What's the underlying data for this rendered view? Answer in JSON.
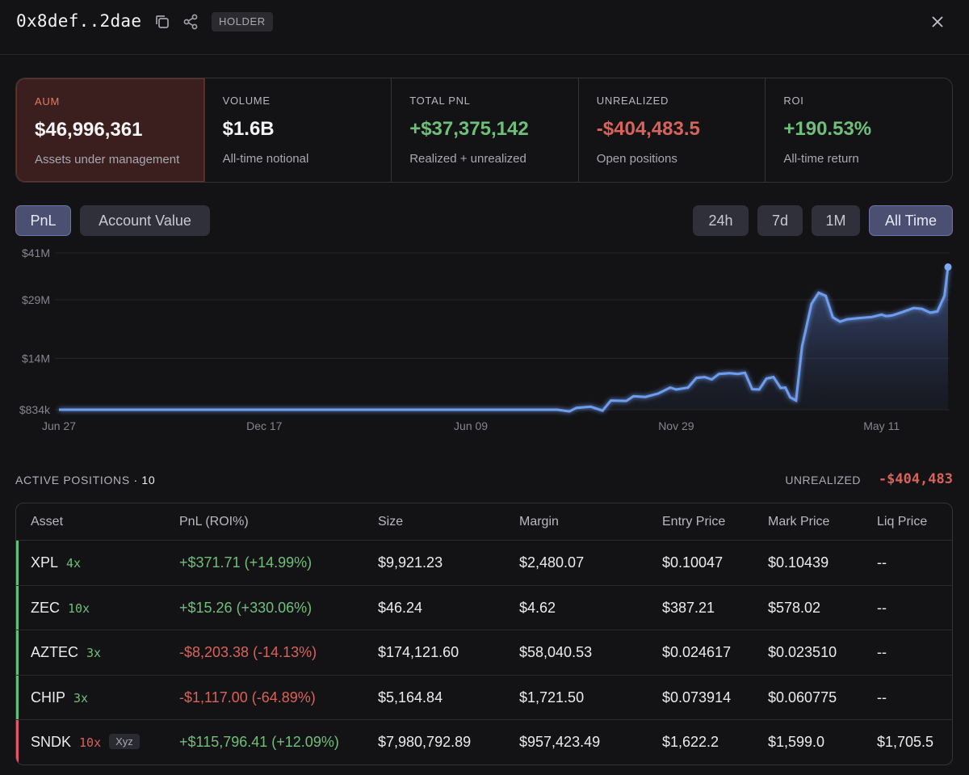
{
  "header": {
    "address": "0x8def..2dae",
    "badge": "HOLDER"
  },
  "stats": [
    {
      "label": "AUM",
      "value": "$46,996,361",
      "sub": "Assets under management"
    },
    {
      "label": "VOLUME",
      "value": "$1.6B",
      "sub": "All-time notional"
    },
    {
      "label": "TOTAL PNL",
      "value": "+$37,375,142",
      "sub": "Realized + unrealized"
    },
    {
      "label": "UNREALIZED",
      "value": "-$404,483.5",
      "sub": "Open positions"
    },
    {
      "label": "ROI",
      "value": "+190.53%",
      "sub": "All-time return"
    }
  ],
  "chart_tabs": {
    "pnl": "PnL",
    "account_value": "Account Value"
  },
  "ranges": {
    "h24": "24h",
    "d7": "7d",
    "m1": "1M",
    "all": "All Time"
  },
  "chart_data": {
    "type": "area",
    "title": "",
    "xlabel": "",
    "ylabel": "",
    "x_ticks": [
      "Jun 27",
      "Dec 17",
      "Jun 09",
      "Nov 29",
      "May 11"
    ],
    "y_ticks": [
      "$41M",
      "$29M",
      "$14M",
      "$834k"
    ],
    "y_tick_values": [
      41,
      29,
      14,
      0.834
    ],
    "ylim": [
      0.834,
      41
    ],
    "y_unit": "$M",
    "x_unit": "days from Jun 27",
    "x_tick_positions": [
      0,
      173,
      347,
      520,
      693
    ],
    "grid": true,
    "series": [
      {
        "points": [
          [
            0,
            0.834
          ],
          [
            100,
            0.834
          ],
          [
            200,
            0.834
          ],
          [
            300,
            0.834
          ],
          [
            400,
            0.834
          ],
          [
            420,
            0.834
          ],
          [
            430,
            0.4
          ],
          [
            436,
            1.3
          ],
          [
            448,
            1.6
          ],
          [
            458,
            0.6
          ],
          [
            465,
            3.2
          ],
          [
            478,
            3.1
          ],
          [
            484,
            4.3
          ],
          [
            494,
            4.1
          ],
          [
            505,
            5.0
          ],
          [
            515,
            6.5
          ],
          [
            520,
            6.0
          ],
          [
            530,
            6.5
          ],
          [
            537,
            9.0
          ],
          [
            544,
            9.2
          ],
          [
            550,
            8.6
          ],
          [
            556,
            10.0
          ],
          [
            565,
            10.2
          ],
          [
            572,
            10.0
          ],
          [
            578,
            10.3
          ],
          [
            584,
            6.1
          ],
          [
            590,
            6.0
          ],
          [
            596,
            8.8
          ],
          [
            602,
            9.2
          ],
          [
            608,
            6.4
          ],
          [
            612,
            6.5
          ],
          [
            616,
            4.0
          ],
          [
            621,
            3.2
          ],
          [
            626,
            17.0
          ],
          [
            634,
            28.0
          ],
          [
            640,
            30.8
          ],
          [
            646,
            30.0
          ],
          [
            652,
            24.5
          ],
          [
            658,
            23.4
          ],
          [
            664,
            24.0
          ],
          [
            673,
            24.3
          ],
          [
            685,
            24.6
          ],
          [
            693,
            25.2
          ],
          [
            697,
            24.8
          ],
          [
            702,
            25.0
          ],
          [
            710,
            25.8
          ],
          [
            720,
            26.9
          ],
          [
            727,
            26.7
          ],
          [
            734,
            25.7
          ],
          [
            740,
            26.0
          ],
          [
            746,
            30.0
          ],
          [
            749,
            37.4
          ]
        ]
      }
    ]
  },
  "positions": {
    "title": "ACTIVE POSITIONS",
    "count": "· 10",
    "unrealized_label": "UNREALIZED",
    "unrealized_value": "-$404,483",
    "columns": [
      "Asset",
      "PnL (ROI%)",
      "Size",
      "Margin",
      "Entry Price",
      "Mark Price",
      "Liq Price"
    ],
    "rows": [
      {
        "asset": "XPL",
        "leverage": "4x",
        "tag": "",
        "pnl": "+$371.71 (+14.99%)",
        "size": "$9,921.23",
        "margin": "$2,480.07",
        "entry": "$0.10047",
        "mark": "$0.10439",
        "liq": "--",
        "side": "long"
      },
      {
        "asset": "ZEC",
        "leverage": "10x",
        "tag": "",
        "pnl": "+$15.26 (+330.06%)",
        "size": "$46.24",
        "margin": "$4.62",
        "entry": "$387.21",
        "mark": "$578.02",
        "liq": "--",
        "side": "long"
      },
      {
        "asset": "AZTEC",
        "leverage": "3x",
        "tag": "",
        "pnl": "-$8,203.38 (-14.13%)",
        "size": "$174,121.60",
        "margin": "$58,040.53",
        "entry": "$0.024617",
        "mark": "$0.023510",
        "liq": "--",
        "side": "long"
      },
      {
        "asset": "CHIP",
        "leverage": "3x",
        "tag": "",
        "pnl": "-$1,117.00 (-64.89%)",
        "size": "$5,164.84",
        "margin": "$1,721.50",
        "entry": "$0.073914",
        "mark": "$0.060775",
        "liq": "--",
        "side": "long"
      },
      {
        "asset": "SNDK",
        "leverage": "10x",
        "tag": "Xyz",
        "pnl": "+$115,796.41 (+12.09%)",
        "size": "$7,980,792.89",
        "margin": "$957,423.49",
        "entry": "$1,622.2",
        "mark": "$1,599.0",
        "liq": "$1,705.5",
        "side": "short"
      }
    ]
  },
  "colors": {
    "positive": "#6fbf7a",
    "negative": "#d9625a",
    "line": "#6e9df0",
    "long_bar": "#5fbf7d",
    "short_bar": "#e0566a",
    "aum_bg": "#3a1f1e"
  }
}
